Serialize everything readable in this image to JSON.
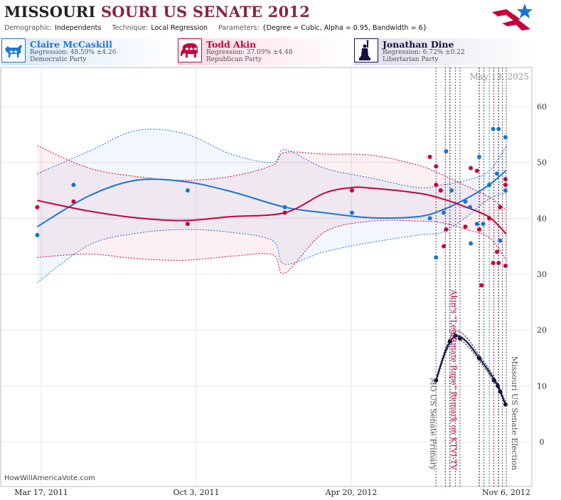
{
  "header": {
    "title_part1": "MISSOURI",
    "title_part2": "SOURI",
    "title_part3": "US SENATE 2012",
    "demographic_label": "Demographic:",
    "demographic_value": "Independents",
    "technique_label": "Technique:",
    "technique_value": "Local Regression",
    "parameters_label": "Parameters:",
    "parameters_value": "{Degree = Cubic, Alpha = 0.95, Bandwidth = 6}"
  },
  "candidates": [
    {
      "name": "Claire McCaskill",
      "regression": "Regression: 48.59% ±4.26",
      "party": "Democratic Party",
      "icon": "donkey-icon",
      "color": "#1a74d6"
    },
    {
      "name": "Todd Akin",
      "regression": "Regression: 37.09% ±4.48",
      "party": "Republican Party",
      "icon": "elephant-icon",
      "color": "#c8003a"
    },
    {
      "name": "Jonathan Dine",
      "regression": "Regression: 6.72% ±0.22",
      "party": "Libertarian Party",
      "icon": "liberty-statue-icon",
      "color": "#14123f"
    }
  ],
  "date_stamp": "May 13, 2025",
  "source": "HowWillAmericaVote.com",
  "chart_data": {
    "type": "scatter",
    "x_ticks": [
      "Mar 17, 2011",
      "Oct 3, 2011",
      "Apr 20, 2012",
      "Nov 6, 2012"
    ],
    "x_range": [
      "2011-02-21",
      "2012-11-06"
    ],
    "y_ticks": [
      0,
      10,
      20,
      30,
      40,
      50,
      60
    ],
    "ylim": [
      -8,
      67
    ],
    "grid": true,
    "annotations": [
      {
        "label": "MO US Senate Primary",
        "date": "2012-08-07",
        "color": "#555555"
      },
      {
        "label": "Akin's \"Legitimate Rape\" Remark on KTVI-TV",
        "date": "2012-08-19",
        "color": "#c8003a"
      },
      {
        "label": "Missouri US Senate Election",
        "date": "2012-11-06",
        "color": "#555555"
      }
    ],
    "event_lines": [
      "2012-08-07",
      "2012-08-19",
      "2012-08-25",
      "2012-09-01",
      "2012-09-07",
      "2012-10-02",
      "2012-10-08",
      "2012-10-15",
      "2012-10-21",
      "2012-10-27",
      "2012-11-01",
      "2012-11-06"
    ],
    "series": [
      {
        "name": "Claire McCaskill",
        "color": "#1a74d6",
        "points": [
          [
            "2011-03-09",
            37
          ],
          [
            "2011-04-25",
            46
          ],
          [
            "2011-09-20",
            45
          ],
          [
            "2012-01-24",
            42
          ],
          [
            "2012-04-20",
            41
          ],
          [
            "2012-07-30",
            40
          ],
          [
            "2012-08-07",
            33
          ],
          [
            "2012-08-13",
            45
          ],
          [
            "2012-08-17",
            41
          ],
          [
            "2012-08-20",
            52
          ],
          [
            "2012-08-27",
            45
          ],
          [
            "2012-09-14",
            43
          ],
          [
            "2012-09-20",
            42
          ],
          [
            "2012-09-21",
            35.5
          ],
          [
            "2012-09-29",
            39
          ],
          [
            "2012-10-02",
            51
          ],
          [
            "2012-10-07",
            39
          ],
          [
            "2012-10-15",
            46
          ],
          [
            "2012-10-20",
            56
          ],
          [
            "2012-10-25",
            48
          ],
          [
            "2012-10-27",
            56
          ],
          [
            "2012-10-29",
            36
          ],
          [
            "2012-11-05",
            54.5
          ],
          [
            "2012-11-05",
            45
          ]
        ],
        "trend": [
          [
            "2011-03-09",
            38.5
          ],
          [
            "2011-05-15",
            44
          ],
          [
            "2011-07-15",
            46.8
          ],
          [
            "2011-09-15",
            46.6
          ],
          [
            "2011-11-15",
            44.8
          ],
          [
            "2012-01-24",
            42
          ],
          [
            "2012-03-15",
            41
          ],
          [
            "2012-05-15",
            40.1
          ],
          [
            "2012-07-15",
            40.3
          ],
          [
            "2012-08-15",
            41.5
          ],
          [
            "2012-09-15",
            43.5
          ],
          [
            "2012-10-15",
            46
          ],
          [
            "2012-11-06",
            48.6
          ]
        ],
        "upper": [
          [
            "2011-03-09",
            48
          ],
          [
            "2011-05-15",
            52
          ],
          [
            "2011-07-15",
            55.7
          ],
          [
            "2011-09-15",
            55.2
          ],
          [
            "2011-11-15",
            51.5
          ],
          [
            "2012-01-08",
            50
          ],
          [
            "2012-01-24",
            52.3
          ],
          [
            "2012-03-15",
            49
          ],
          [
            "2012-05-15",
            47.2
          ],
          [
            "2012-07-15",
            45.5
          ],
          [
            "2012-08-15",
            46
          ],
          [
            "2012-09-15",
            46.8
          ],
          [
            "2012-10-15",
            48.5
          ],
          [
            "2012-11-06",
            53
          ]
        ],
        "lower": [
          [
            "2011-03-09",
            28.5
          ],
          [
            "2011-05-15",
            35.2
          ],
          [
            "2011-07-15",
            37.3
          ],
          [
            "2011-09-15",
            38
          ],
          [
            "2011-11-15",
            37.5
          ],
          [
            "2012-01-08",
            36
          ],
          [
            "2012-01-24",
            31.8
          ],
          [
            "2012-03-15",
            34
          ],
          [
            "2012-05-15",
            35.7
          ],
          [
            "2012-07-15",
            37
          ],
          [
            "2012-08-15",
            37.5
          ],
          [
            "2012-09-15",
            40.2
          ],
          [
            "2012-10-15",
            43.5
          ],
          [
            "2012-11-06",
            44.5
          ]
        ]
      },
      {
        "name": "Todd Akin",
        "color": "#c8003a",
        "points": [
          [
            "2011-03-09",
            42
          ],
          [
            "2011-04-25",
            43
          ],
          [
            "2011-09-20",
            39
          ],
          [
            "2012-01-24",
            41
          ],
          [
            "2012-04-20",
            45
          ],
          [
            "2012-07-30",
            51
          ],
          [
            "2012-08-07",
            46
          ],
          [
            "2012-08-07",
            49.3
          ],
          [
            "2012-08-13",
            45
          ],
          [
            "2012-08-17",
            35
          ],
          [
            "2012-08-20",
            38
          ],
          [
            "2012-09-14",
            38.5
          ],
          [
            "2012-09-21",
            49
          ],
          [
            "2012-09-29",
            48.5
          ],
          [
            "2012-10-02",
            38
          ],
          [
            "2012-10-05",
            28
          ],
          [
            "2012-10-15",
            40
          ],
          [
            "2012-10-20",
            32
          ],
          [
            "2012-10-25",
            34
          ],
          [
            "2012-10-27",
            32
          ],
          [
            "2012-10-29",
            42
          ],
          [
            "2012-11-05",
            31.5
          ],
          [
            "2012-11-05",
            46
          ],
          [
            "2012-11-05",
            47
          ]
        ],
        "trend": [
          [
            "2011-03-09",
            43.2
          ],
          [
            "2011-05-15",
            41.3
          ],
          [
            "2011-07-15",
            40.1
          ],
          [
            "2011-09-15",
            39.6
          ],
          [
            "2011-11-15",
            40.3
          ],
          [
            "2012-01-24",
            41
          ],
          [
            "2012-03-15",
            44.5
          ],
          [
            "2012-04-20",
            45.5
          ],
          [
            "2012-05-15",
            45.4
          ],
          [
            "2012-07-15",
            44.5
          ],
          [
            "2012-08-15",
            43.5
          ],
          [
            "2012-09-15",
            42
          ],
          [
            "2012-10-15",
            40.2
          ],
          [
            "2012-11-06",
            37.2
          ]
        ],
        "upper": [
          [
            "2011-03-09",
            53
          ],
          [
            "2011-05-15",
            49
          ],
          [
            "2011-07-15",
            47.5
          ],
          [
            "2011-09-15",
            46.8
          ],
          [
            "2011-11-15",
            47.5
          ],
          [
            "2012-01-08",
            49.5
          ],
          [
            "2012-01-24",
            51.8
          ],
          [
            "2012-03-15",
            51.5
          ],
          [
            "2012-05-15",
            51.3
          ],
          [
            "2012-07-15",
            49.5
          ],
          [
            "2012-08-15",
            47.8
          ],
          [
            "2012-09-15",
            45.8
          ],
          [
            "2012-10-15",
            43.8
          ],
          [
            "2012-11-06",
            41.5
          ]
        ],
        "lower": [
          [
            "2011-03-09",
            33
          ],
          [
            "2011-05-15",
            33.6
          ],
          [
            "2011-07-15",
            32.8
          ],
          [
            "2011-09-15",
            32.5
          ],
          [
            "2011-11-15",
            33.2
          ],
          [
            "2012-01-08",
            33.5
          ],
          [
            "2012-01-24",
            30.2
          ],
          [
            "2012-03-15",
            37.5
          ],
          [
            "2012-05-15",
            39.5
          ],
          [
            "2012-07-15",
            39.5
          ],
          [
            "2012-08-15",
            39.2
          ],
          [
            "2012-09-15",
            38
          ],
          [
            "2012-10-15",
            36.5
          ],
          [
            "2012-11-06",
            32.5
          ]
        ]
      },
      {
        "name": "Jonathan Dine",
        "color": "#14123f",
        "points": [
          [
            "2012-08-07",
            11
          ],
          [
            "2012-08-25",
            18
          ],
          [
            "2012-09-01",
            19
          ],
          [
            "2012-09-07",
            18.5
          ],
          [
            "2012-10-02",
            15
          ],
          [
            "2012-10-21",
            11
          ],
          [
            "2012-10-26",
            10
          ],
          [
            "2012-10-29",
            9
          ],
          [
            "2012-11-05",
            6.7
          ]
        ],
        "trend": [
          [
            "2012-08-07",
            11
          ],
          [
            "2012-08-20",
            16.5
          ],
          [
            "2012-09-01",
            18.9
          ],
          [
            "2012-09-15",
            18
          ],
          [
            "2012-10-02",
            15
          ],
          [
            "2012-10-15",
            12.5
          ],
          [
            "2012-10-26",
            10
          ],
          [
            "2012-11-05",
            6.7
          ]
        ],
        "upper": [
          [
            "2012-08-07",
            11.4
          ],
          [
            "2012-08-20",
            17
          ],
          [
            "2012-09-01",
            19.8
          ],
          [
            "2012-09-15",
            18.8
          ],
          [
            "2012-10-02",
            15.5
          ],
          [
            "2012-10-15",
            13
          ],
          [
            "2012-10-26",
            10.4
          ],
          [
            "2012-11-05",
            7.1
          ]
        ],
        "lower": [
          [
            "2012-08-07",
            10.6
          ],
          [
            "2012-08-20",
            16
          ],
          [
            "2012-09-01",
            18.3
          ],
          [
            "2012-09-15",
            17.4
          ],
          [
            "2012-10-02",
            14.5
          ],
          [
            "2012-10-15",
            12
          ],
          [
            "2012-10-26",
            9.6
          ],
          [
            "2012-11-05",
            6.3
          ]
        ]
      }
    ]
  }
}
